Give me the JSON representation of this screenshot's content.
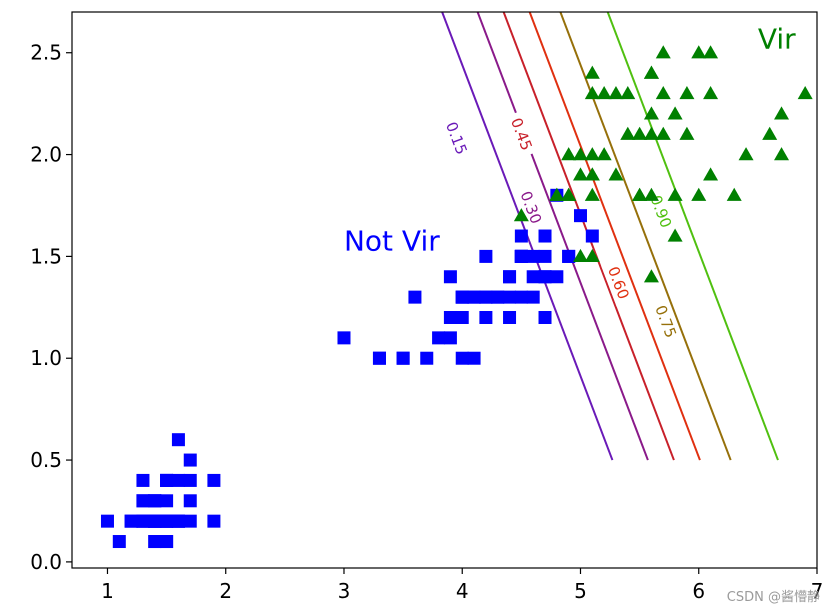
{
  "chart_data": {
    "type": "scatter",
    "title": "",
    "xlabel": "",
    "ylabel": "",
    "xlim": [
      0.7,
      7.0
    ],
    "ylim": [
      -0.03,
      2.7
    ],
    "x_ticks": [
      "1",
      "2",
      "3",
      "4",
      "5",
      "6",
      "7"
    ],
    "x_tick_values": [
      1,
      2,
      3,
      4,
      5,
      6,
      7
    ],
    "y_ticks": [
      "0.0",
      "0.5",
      "1.0",
      "1.5",
      "2.0",
      "2.5"
    ],
    "y_tick_values": [
      0.0,
      0.5,
      1.0,
      1.5,
      2.0,
      2.5
    ],
    "series": [
      {
        "name": "Not Vir",
        "marker": "square",
        "color": "#0000ff",
        "points": [
          [
            1.4,
            0.2
          ],
          [
            1.4,
            0.2
          ],
          [
            1.3,
            0.2
          ],
          [
            1.5,
            0.2
          ],
          [
            1.4,
            0.2
          ],
          [
            1.7,
            0.4
          ],
          [
            1.4,
            0.3
          ],
          [
            1.5,
            0.2
          ],
          [
            1.4,
            0.2
          ],
          [
            1.5,
            0.1
          ],
          [
            1.5,
            0.2
          ],
          [
            1.6,
            0.2
          ],
          [
            1.4,
            0.1
          ],
          [
            1.1,
            0.1
          ],
          [
            1.2,
            0.2
          ],
          [
            1.5,
            0.4
          ],
          [
            1.3,
            0.4
          ],
          [
            1.4,
            0.3
          ],
          [
            1.7,
            0.3
          ],
          [
            1.5,
            0.3
          ],
          [
            1.7,
            0.2
          ],
          [
            1.5,
            0.4
          ],
          [
            1.0,
            0.2
          ],
          [
            1.7,
            0.5
          ],
          [
            1.9,
            0.2
          ],
          [
            1.6,
            0.2
          ],
          [
            1.6,
            0.4
          ],
          [
            1.5,
            0.2
          ],
          [
            1.4,
            0.2
          ],
          [
            1.6,
            0.2
          ],
          [
            1.6,
            0.2
          ],
          [
            1.5,
            0.4
          ],
          [
            1.5,
            0.1
          ],
          [
            1.4,
            0.2
          ],
          [
            1.5,
            0.2
          ],
          [
            1.2,
            0.2
          ],
          [
            1.3,
            0.2
          ],
          [
            1.4,
            0.1
          ],
          [
            1.3,
            0.2
          ],
          [
            1.5,
            0.2
          ],
          [
            1.3,
            0.3
          ],
          [
            1.3,
            0.3
          ],
          [
            1.3,
            0.2
          ],
          [
            1.6,
            0.6
          ],
          [
            1.9,
            0.4
          ],
          [
            1.4,
            0.3
          ],
          [
            1.6,
            0.2
          ],
          [
            1.4,
            0.2
          ],
          [
            1.5,
            0.2
          ],
          [
            1.4,
            0.2
          ],
          [
            4.7,
            1.4
          ],
          [
            4.5,
            1.5
          ],
          [
            4.9,
            1.5
          ],
          [
            4.0,
            1.3
          ],
          [
            4.6,
            1.5
          ],
          [
            4.5,
            1.3
          ],
          [
            4.7,
            1.6
          ],
          [
            3.3,
            1.0
          ],
          [
            4.6,
            1.3
          ],
          [
            3.9,
            1.4
          ],
          [
            3.5,
            1.0
          ],
          [
            4.2,
            1.5
          ],
          [
            4.0,
            1.0
          ],
          [
            4.7,
            1.4
          ],
          [
            3.6,
            1.3
          ],
          [
            4.4,
            1.4
          ],
          [
            4.5,
            1.5
          ],
          [
            4.1,
            1.0
          ],
          [
            4.5,
            1.5
          ],
          [
            3.9,
            1.1
          ],
          [
            4.8,
            1.8
          ],
          [
            4.0,
            1.3
          ],
          [
            4.9,
            1.5
          ],
          [
            4.7,
            1.2
          ],
          [
            4.3,
            1.3
          ],
          [
            4.4,
            1.4
          ],
          [
            4.8,
            1.4
          ],
          [
            5.0,
            1.7
          ],
          [
            4.5,
            1.5
          ],
          [
            3.5,
            1.0
          ],
          [
            3.8,
            1.1
          ],
          [
            3.7,
            1.0
          ],
          [
            3.9,
            1.2
          ],
          [
            5.1,
            1.6
          ],
          [
            4.5,
            1.5
          ],
          [
            4.5,
            1.6
          ],
          [
            4.7,
            1.5
          ],
          [
            4.4,
            1.3
          ],
          [
            4.1,
            1.3
          ],
          [
            4.0,
            1.3
          ],
          [
            4.4,
            1.2
          ],
          [
            4.6,
            1.4
          ],
          [
            4.0,
            1.2
          ],
          [
            3.3,
            1.0
          ],
          [
            4.2,
            1.3
          ],
          [
            4.2,
            1.2
          ],
          [
            4.2,
            1.3
          ],
          [
            4.3,
            1.3
          ],
          [
            3.0,
            1.1
          ],
          [
            4.1,
            1.3
          ]
        ]
      },
      {
        "name": "Vir",
        "marker": "triangle",
        "color": "#008000",
        "points": [
          [
            6.0,
            2.5
          ],
          [
            5.1,
            1.9
          ],
          [
            5.9,
            2.1
          ],
          [
            5.6,
            1.8
          ],
          [
            5.8,
            2.2
          ],
          [
            6.6,
            2.1
          ],
          [
            4.5,
            1.7
          ],
          [
            6.3,
            1.8
          ],
          [
            5.8,
            1.8
          ],
          [
            6.1,
            2.5
          ],
          [
            5.1,
            2.0
          ],
          [
            5.3,
            1.9
          ],
          [
            5.5,
            2.1
          ],
          [
            5.0,
            2.0
          ],
          [
            5.1,
            2.4
          ],
          [
            5.3,
            2.3
          ],
          [
            5.5,
            1.8
          ],
          [
            6.7,
            2.2
          ],
          [
            6.9,
            2.3
          ],
          [
            5.0,
            1.5
          ],
          [
            5.7,
            2.3
          ],
          [
            4.9,
            2.0
          ],
          [
            6.7,
            2.0
          ],
          [
            4.9,
            1.8
          ],
          [
            5.7,
            2.1
          ],
          [
            6.0,
            1.8
          ],
          [
            4.8,
            1.8
          ],
          [
            4.9,
            1.8
          ],
          [
            5.6,
            2.1
          ],
          [
            5.8,
            1.6
          ],
          [
            6.1,
            1.9
          ],
          [
            6.4,
            2.0
          ],
          [
            5.6,
            2.2
          ],
          [
            5.1,
            1.5
          ],
          [
            5.6,
            1.4
          ],
          [
            6.1,
            2.3
          ],
          [
            5.6,
            2.4
          ],
          [
            5.5,
            1.8
          ],
          [
            4.8,
            1.8
          ],
          [
            5.4,
            2.1
          ],
          [
            5.6,
            2.4
          ],
          [
            5.1,
            2.3
          ],
          [
            5.1,
            1.9
          ],
          [
            5.9,
            2.3
          ],
          [
            5.7,
            2.5
          ],
          [
            5.2,
            2.3
          ],
          [
            5.0,
            1.9
          ],
          [
            5.2,
            2.0
          ],
          [
            5.4,
            2.3
          ],
          [
            5.1,
            1.8
          ]
        ]
      }
    ],
    "contours": [
      {
        "level": "0.15",
        "color": "#6a1ab8",
        "start": [
          3.83,
          2.7
        ],
        "end": [
          5.27,
          0.5
        ],
        "label_at": [
          3.95,
          2.08
        ]
      },
      {
        "level": "0.30",
        "color": "#8a1a8a",
        "start": [
          4.13,
          2.7
        ],
        "end": [
          5.57,
          0.5
        ],
        "label_at": [
          4.58,
          1.74
        ]
      },
      {
        "level": "0.45",
        "color": "#c8202a",
        "start": [
          4.35,
          2.7
        ],
        "end": [
          5.79,
          0.5
        ],
        "label_at": [
          4.5,
          2.1
        ]
      },
      {
        "level": "0.60",
        "color": "#e03010",
        "start": [
          4.57,
          2.7
        ],
        "end": [
          6.01,
          0.5
        ],
        "label_at": [
          5.32,
          1.37
        ]
      },
      {
        "level": "0.75",
        "color": "#96700a",
        "start": [
          4.83,
          2.7
        ],
        "end": [
          6.27,
          0.5
        ],
        "label_at": [
          5.72,
          1.18
        ]
      },
      {
        "level": "0.90",
        "color": "#50c010",
        "start": [
          5.23,
          2.7
        ],
        "end": [
          6.67,
          0.5
        ],
        "label_at": [
          5.68,
          1.72
        ]
      }
    ],
    "annotations": [
      {
        "text": "Not Vir",
        "x": 3.0,
        "y": 1.53,
        "color": "#0000ff"
      },
      {
        "text": "Vir",
        "x": 6.5,
        "y": 2.52,
        "color": "#008000"
      }
    ]
  },
  "watermark": "CSDN @酱懵静"
}
